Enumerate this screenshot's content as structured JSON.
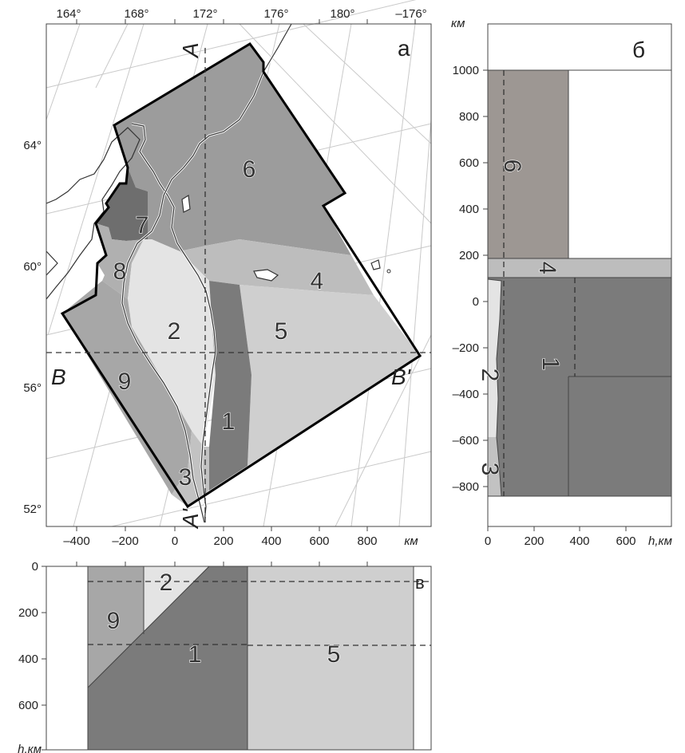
{
  "panel_a": {
    "label": "а",
    "lon_ticks": [
      "164°",
      "168°",
      "172°",
      "176°",
      "180°",
      "–176°"
    ],
    "lat_ticks": [
      "64°",
      "60°",
      "56°",
      "52°"
    ],
    "x_km_ticks": [
      "–400",
      "–200",
      "0",
      "200",
      "400",
      "600",
      "800"
    ],
    "x_unit": "км",
    "section_A": "A",
    "section_A2": "A'",
    "section_B": "B",
    "section_B2": "B'"
  },
  "panel_b": {
    "label": "б",
    "unit": "км",
    "y_ticks": [
      "1000",
      "800",
      "600",
      "400",
      "200",
      "0",
      "–200",
      "–400",
      "–600",
      "–800"
    ],
    "x_ticks": [
      "0",
      "200",
      "400",
      "600"
    ],
    "x_label": "h,км"
  },
  "panel_c": {
    "label": "в",
    "y_ticks": [
      "0",
      "200",
      "400",
      "600"
    ],
    "y_label": "h,км"
  },
  "zones": {
    "z1": "1",
    "z2": "2",
    "z3": "3",
    "z4": "4",
    "z5": "5",
    "z6": "6",
    "z7": "7",
    "z8": "8",
    "z9": "9"
  },
  "colors": {
    "z1": "#7b7b7b",
    "z2": "#e4e4e4",
    "z3": "#c2c2c2",
    "z4": "#bdbdbd",
    "z5": "#cfcfcf",
    "z6": "#9c9c9c",
    "z7": "#6e6e6e",
    "z8": "#b0b0b0",
    "z9": "#a7a7a7",
    "z6_section": "#9d9793"
  }
}
